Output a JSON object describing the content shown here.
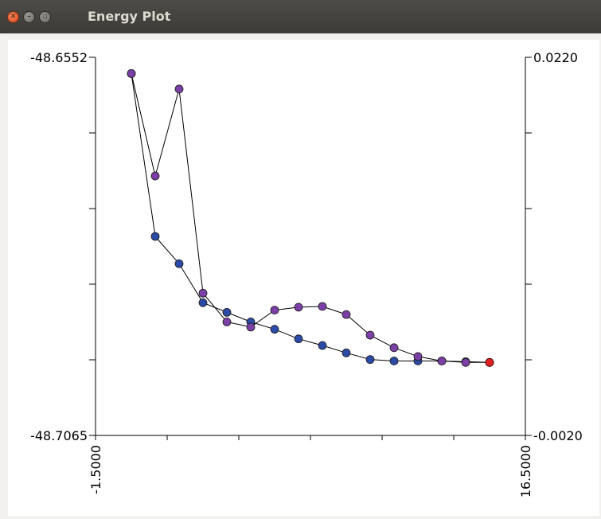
{
  "window": {
    "title": "Energy Plot",
    "close_icon": "close-icon",
    "minimize_icon": "minimize-icon",
    "maximize_icon": "maximize-icon"
  },
  "chart_data": {
    "type": "scatter",
    "title": "",
    "xlabel": "",
    "ylabel": "",
    "xlim": [
      -1.5,
      16.5
    ],
    "ylim": [
      -48.7065,
      -48.6552
    ],
    "y2lim": [
      -0.002,
      0.022
    ],
    "x_tick_labels": [
      "-1.5000",
      "16.5000"
    ],
    "y_tick_labels": [
      "-48.6552",
      "-48.7065"
    ],
    "y2_tick_labels": [
      "0.0220",
      "-0.0020"
    ],
    "grid": false,
    "legend": "none",
    "series": [
      {
        "marker_color": "#2a4aa6",
        "x": [
          0,
          1,
          2,
          3,
          4,
          5,
          6,
          7,
          8,
          9,
          10,
          11,
          12,
          13,
          14,
          15
        ],
        "y": [
          -48.6574,
          -48.6795,
          -48.6832,
          -48.6885,
          -48.6898,
          -48.6911,
          -48.6921,
          -48.6934,
          -48.6943,
          -48.6953,
          -48.6962,
          -48.6964,
          -48.6964,
          -48.6964,
          -48.6965,
          -48.6966
        ]
      },
      {
        "marker_color": "#7b3fa6",
        "x": [
          0,
          1,
          2,
          3,
          4,
          5,
          6,
          7,
          8,
          9,
          10,
          11,
          12,
          13,
          14,
          15
        ],
        "y": [
          -48.6574,
          -48.6713,
          -48.6595,
          -48.6872,
          -48.6911,
          -48.6918,
          -48.6895,
          -48.6891,
          -48.689,
          -48.6901,
          -48.6929,
          -48.6946,
          -48.6958,
          -48.6964,
          -48.6966,
          -48.6966
        ]
      }
    ],
    "final_point": {
      "x": 15,
      "y": -48.6966,
      "color": "#e02020"
    }
  }
}
